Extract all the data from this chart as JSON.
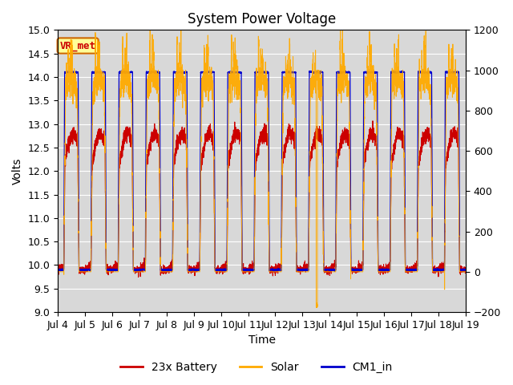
{
  "title": "System Power Voltage",
  "xlabel": "Time",
  "ylabel_left": "Volts",
  "ylim_left": [
    9.0,
    15.0
  ],
  "ylim_right": [
    -200,
    1200
  ],
  "xlim": [
    0,
    15
  ],
  "x_tick_labels": [
    "Jul 4",
    "Jul 5",
    "Jul 6",
    "Jul 7",
    "Jul 8",
    "Jul 9",
    "Jul 10",
    "Jul 11",
    "Jul 12",
    "Jul 13",
    "Jul 14",
    "Jul 15",
    "Jul 16",
    "Jul 17",
    "Jul 18",
    "Jul 19"
  ],
  "yticks_left": [
    9.0,
    9.5,
    10.0,
    10.5,
    11.0,
    11.5,
    12.0,
    12.5,
    13.0,
    13.5,
    14.0,
    14.5,
    15.0
  ],
  "yticks_right": [
    -200,
    0,
    200,
    400,
    600,
    800,
    1000,
    1200
  ],
  "color_battery": "#cc0000",
  "color_solar": "#ffaa00",
  "color_cm1": "#0000cc",
  "background_color": "#d8d8d8",
  "annotation_text": "VR_met",
  "annotation_color": "#cc0000",
  "annotation_bg": "#ffff99",
  "annotation_border": "#cc6600",
  "legend_labels": [
    "23x Battery",
    "Solar",
    "CM1_in"
  ],
  "title_fontsize": 12,
  "axis_fontsize": 10,
  "tick_fontsize": 9
}
